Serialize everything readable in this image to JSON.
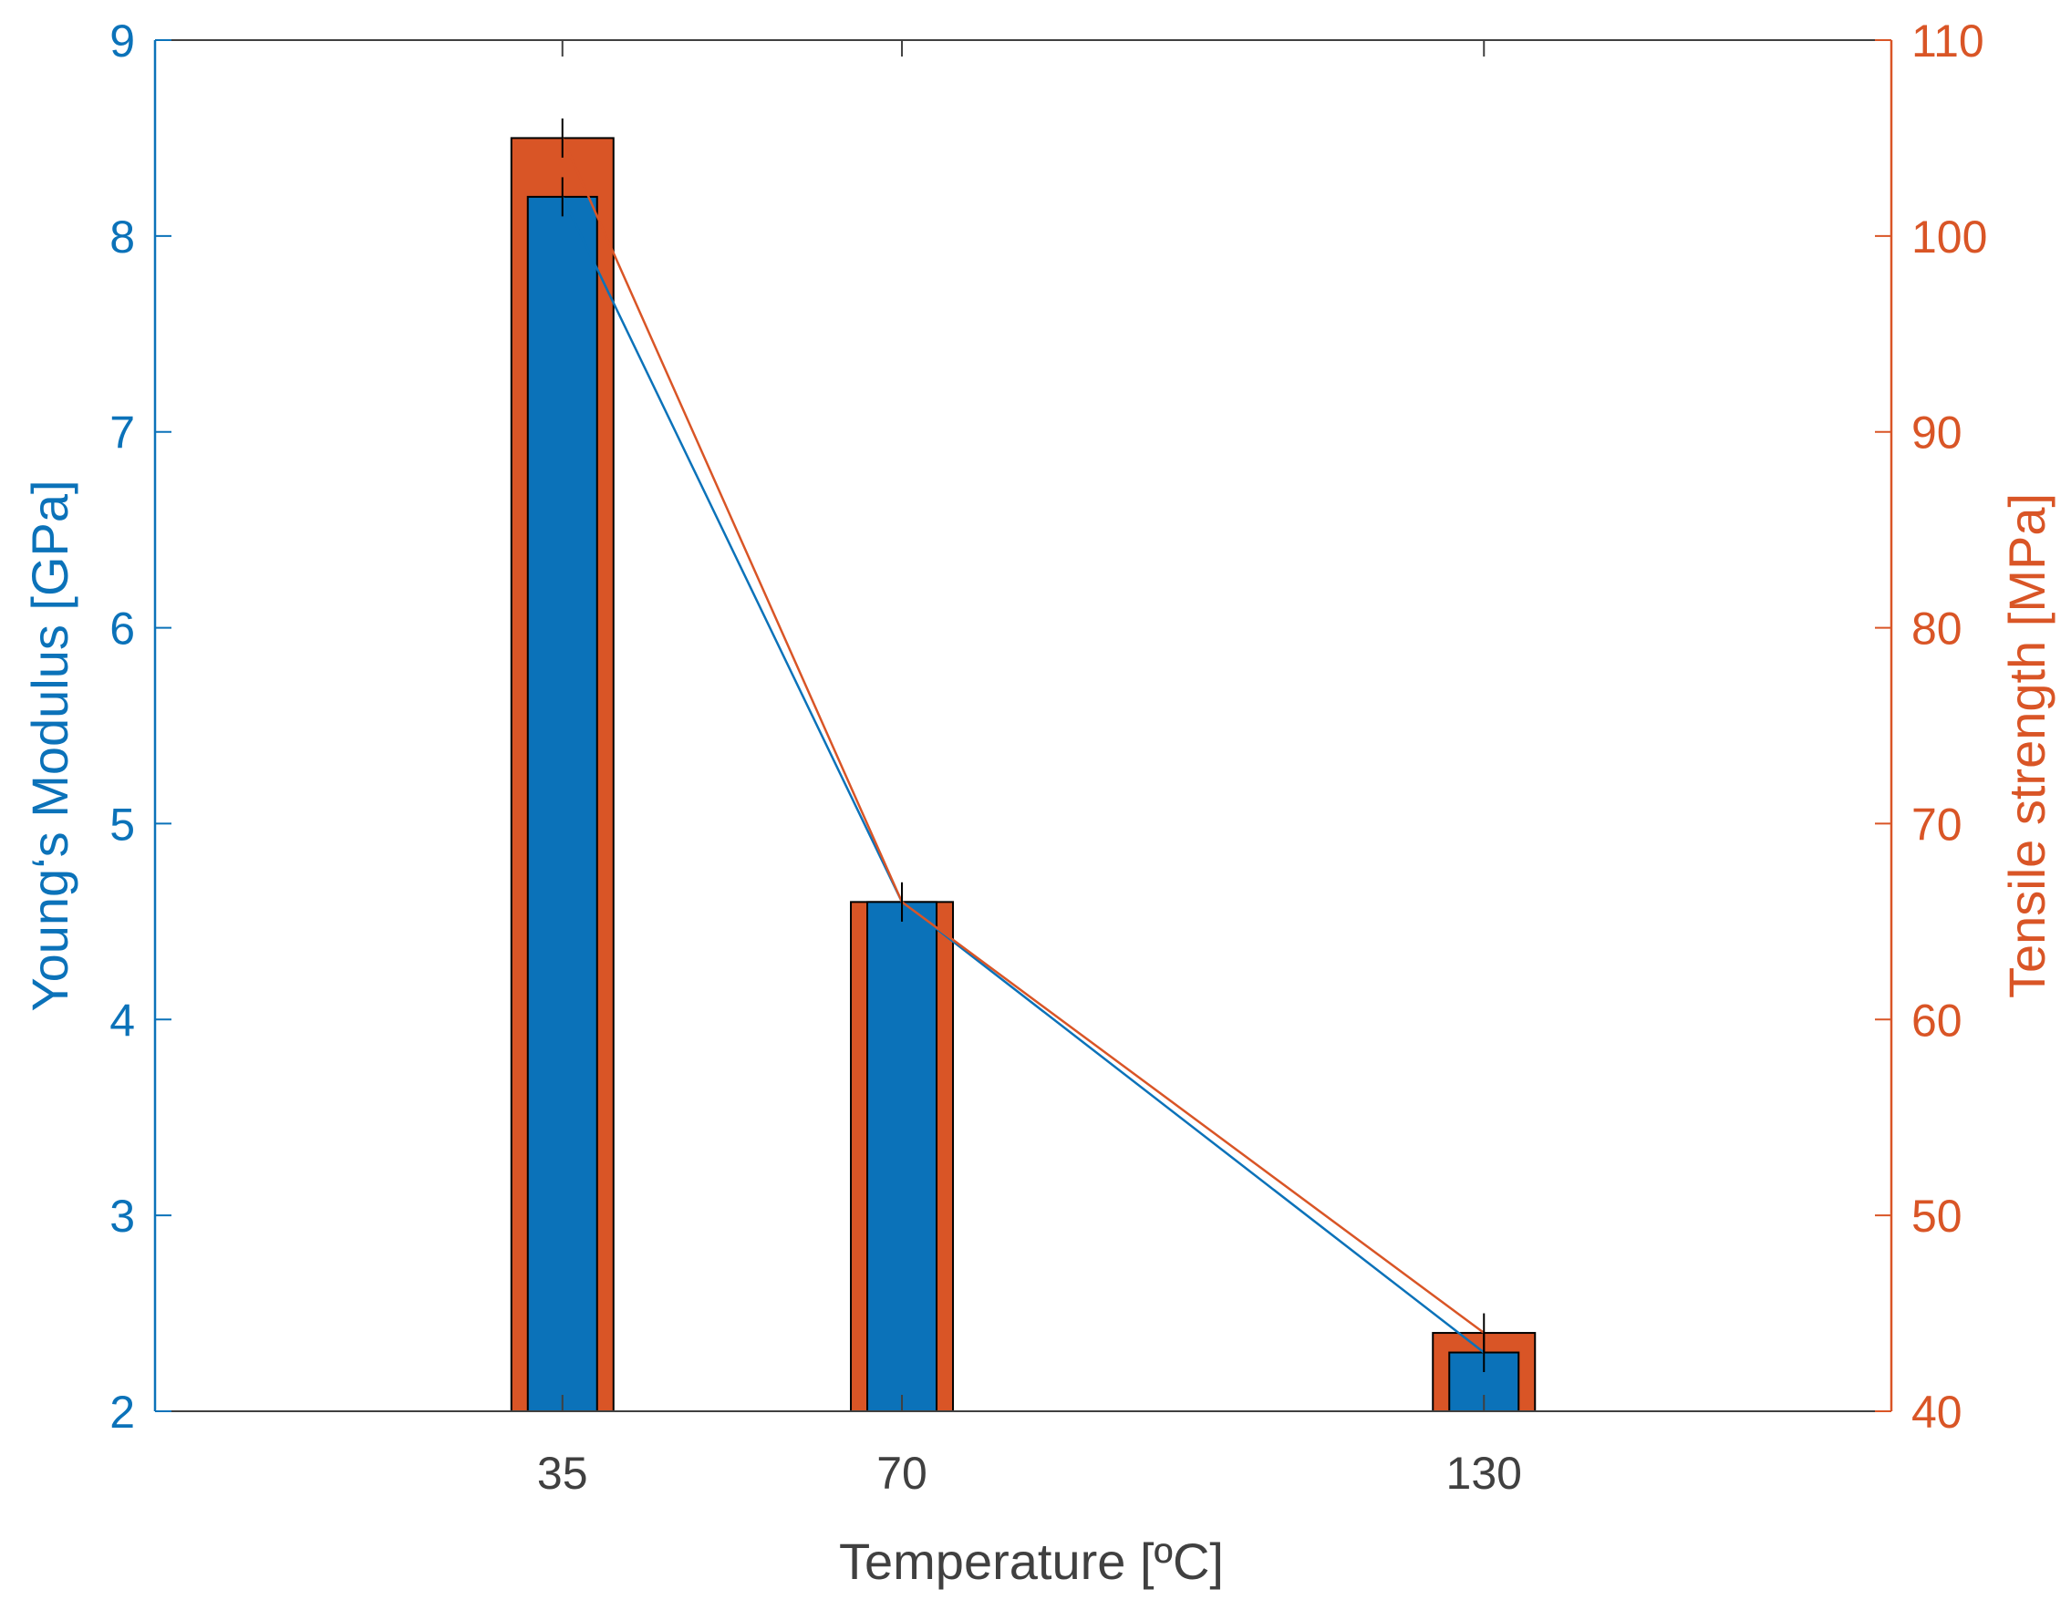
{
  "chart_data": {
    "type": "bar",
    "title": "",
    "xlabel": "Temperature [ºC]",
    "ylabel_left": "Young‘s Modulus [GPa]",
    "ylabel_right": "Tensile strength [MPa]",
    "x_ticks": [
      35,
      70,
      130
    ],
    "x_tick_labels": [
      "35",
      "70",
      "130"
    ],
    "xlim": [
      -7,
      172
    ],
    "ylim_left": [
      2,
      9
    ],
    "ylim_right": [
      40,
      110
    ],
    "y_ticks_left": [
      2,
      3,
      4,
      5,
      6,
      7,
      8,
      9
    ],
    "y_ticks_right": [
      40,
      50,
      60,
      70,
      80,
      90,
      100,
      110
    ],
    "series": [
      {
        "name": "Young‘s Modulus",
        "axis": "left",
        "x": [
          35,
          70,
          130
        ],
        "values": [
          8.2,
          4.6,
          2.3
        ],
        "error": [
          0.1,
          0.1,
          0.1
        ],
        "color": "#0b72b9"
      },
      {
        "name": "Tensile strength",
        "axis": "right",
        "x": [
          35,
          70,
          130
        ],
        "values": [
          105,
          66,
          44
        ],
        "error": [
          1,
          1,
          1
        ],
        "color": "#d95526"
      }
    ],
    "colors": {
      "left_axis": "#0b72b9",
      "right_axis": "#d95526",
      "x_axis": "#404040",
      "bar_edge": "#000000"
    },
    "grid": false,
    "legend": "none"
  }
}
